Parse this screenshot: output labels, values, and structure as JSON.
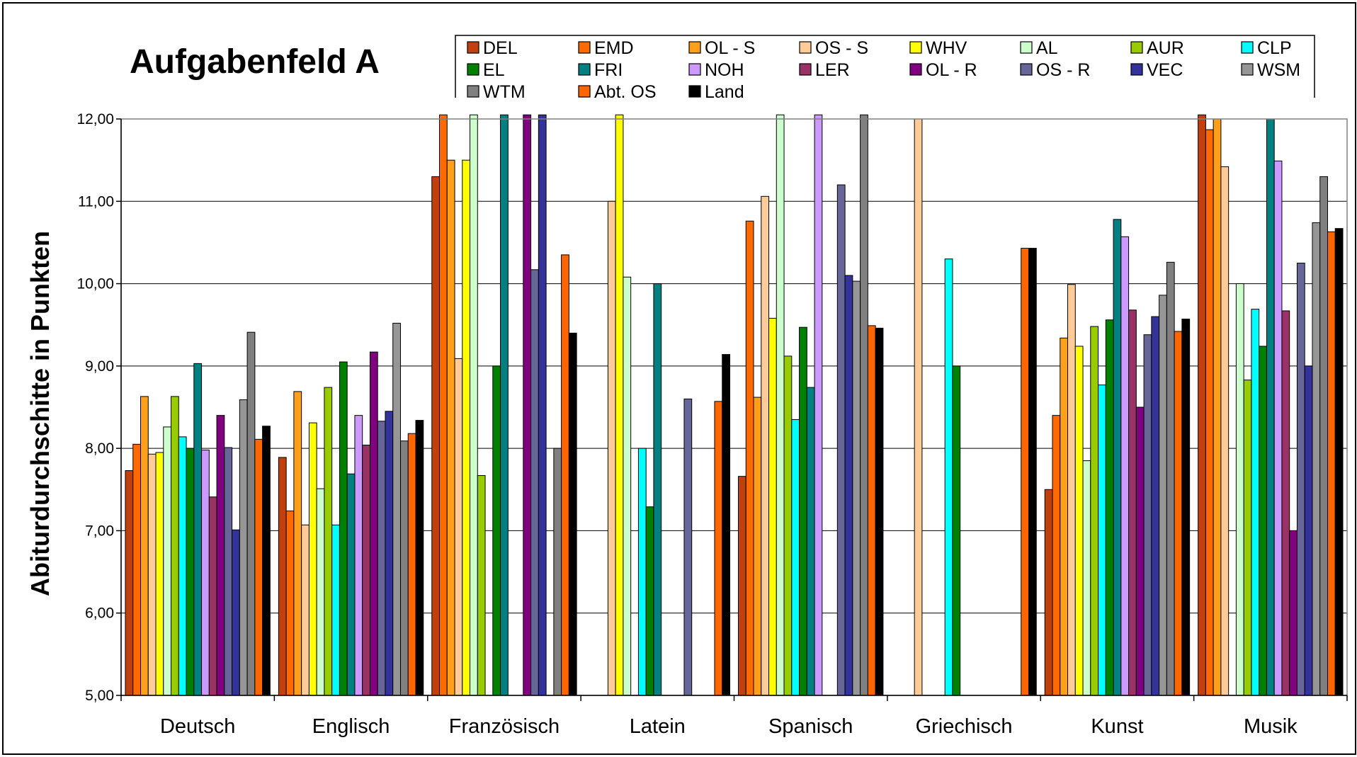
{
  "chart_data": {
    "type": "bar",
    "title": "Aufgabenfeld A",
    "ylabel": "Abiturdurchschitte in Punkten",
    "xlabel": "",
    "ylim": [
      5,
      12
    ],
    "ytick_step": 1,
    "yticks_labels": [
      "5,00",
      "6,00",
      "7,00",
      "8,00",
      "9,00",
      "10,00",
      "11,00",
      "12,00"
    ],
    "grid": true,
    "legend_position": "top",
    "categories": [
      "Deutsch",
      "Englisch",
      "Französisch",
      "Latein",
      "Spanisch",
      "Griechisch",
      "Kunst",
      "Musik"
    ],
    "series": [
      {
        "name": "DEL",
        "color": "#c0410e",
        "values": [
          7.73,
          7.89,
          11.3,
          null,
          7.66,
          null,
          7.5,
          12.05
        ]
      },
      {
        "name": "EMD",
        "color": "#ff6a00",
        "values": [
          8.05,
          7.24,
          12.05,
          null,
          10.76,
          null,
          8.4,
          11.87
        ]
      },
      {
        "name": "OL - S",
        "color": "#ff9f1a",
        "values": [
          8.63,
          8.69,
          11.5,
          null,
          8.62,
          null,
          9.34,
          12.0
        ]
      },
      {
        "name": "OS - S",
        "color": "#ffcc99",
        "values": [
          7.93,
          7.07,
          9.09,
          11.0,
          11.06,
          12.0,
          9.99,
          11.42
        ]
      },
      {
        "name": "WHV",
        "color": "#ffff00",
        "values": [
          7.95,
          8.31,
          11.5,
          12.05,
          9.58,
          null,
          9.24,
          null
        ]
      },
      {
        "name": "AL",
        "color": "#ccffcc",
        "values": [
          8.26,
          7.51,
          12.05,
          10.08,
          12.05,
          null,
          7.85,
          10.0
        ]
      },
      {
        "name": "AUR",
        "color": "#99cc00",
        "values": [
          8.63,
          8.74,
          7.67,
          null,
          9.12,
          null,
          9.48,
          8.83
        ]
      },
      {
        "name": "CLP",
        "color": "#00ffff",
        "values": [
          8.14,
          7.07,
          null,
          8.0,
          8.35,
          10.3,
          8.77,
          9.69
        ]
      },
      {
        "name": "EL",
        "color": "#008000",
        "values": [
          8.0,
          9.05,
          9.0,
          7.29,
          9.47,
          9.0,
          9.56,
          9.24
        ]
      },
      {
        "name": "FRI",
        "color": "#008080",
        "values": [
          9.03,
          7.69,
          12.05,
          10.0,
          8.74,
          null,
          10.78,
          12.0
        ]
      },
      {
        "name": "NOH",
        "color": "#cc99ff",
        "values": [
          7.98,
          8.4,
          null,
          null,
          12.05,
          null,
          10.57,
          11.49
        ]
      },
      {
        "name": "LER",
        "color": "#993366",
        "values": [
          7.41,
          8.04,
          null,
          null,
          null,
          null,
          9.68,
          9.67
        ]
      },
      {
        "name": "OL - R",
        "color": "#800080",
        "values": [
          8.4,
          9.17,
          12.05,
          null,
          null,
          null,
          8.5,
          7.0
        ]
      },
      {
        "name": "OS - R",
        "color": "#666699",
        "values": [
          8.01,
          8.33,
          10.17,
          8.6,
          11.2,
          null,
          9.38,
          10.25
        ]
      },
      {
        "name": "VEC",
        "color": "#333399",
        "values": [
          7.01,
          8.45,
          12.05,
          null,
          10.1,
          null,
          9.6,
          9.0
        ]
      },
      {
        "name": "WSM",
        "color": "#969696",
        "values": [
          8.59,
          9.52,
          null,
          null,
          10.03,
          null,
          9.86,
          10.74
        ]
      },
      {
        "name": "WTM",
        "color": "#808080",
        "values": [
          9.41,
          8.09,
          8.0,
          null,
          12.05,
          null,
          10.26,
          11.3
        ]
      },
      {
        "name": "Abt. OS",
        "color": "#ff6600",
        "values": [
          8.11,
          8.18,
          10.35,
          8.57,
          9.49,
          10.43,
          9.42,
          10.63
        ]
      },
      {
        "name": "Land",
        "color": "#000000",
        "values": [
          8.27,
          8.34,
          9.4,
          9.14,
          9.46,
          10.43,
          9.57,
          10.67
        ]
      }
    ]
  }
}
